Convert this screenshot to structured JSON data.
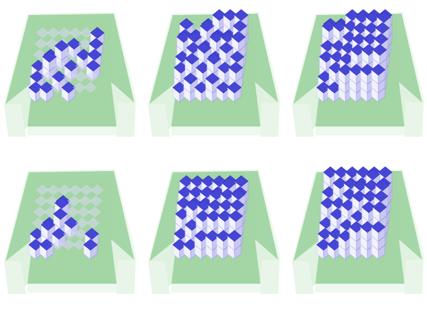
{
  "colors": {
    "background": "#ffffff",
    "tray_base": "#a5d6a7",
    "tray_wall_inner": "#dff2df",
    "tray_wall_outer": "#eef8ee",
    "cube_top": "#4646d6",
    "cube_top_dark": "#2f2fb8",
    "cube_side_light": "#f2f2ff",
    "cube_side_mid": "#c8c8f2",
    "cube_side_dark": "#9a9ad6",
    "ghost_cube": "#d9d9f2"
  },
  "panels": [
    {
      "cols": 6,
      "rows": 6,
      "heights": [
        [
          0,
          0,
          0,
          0,
          0,
          1
        ],
        [
          0,
          0,
          0,
          1,
          0,
          1
        ],
        [
          0,
          1,
          2,
          0,
          1,
          1
        ],
        [
          1,
          2,
          0,
          1,
          0,
          1
        ],
        [
          1,
          0,
          1,
          0,
          0,
          0
        ],
        [
          1,
          1,
          0,
          1,
          0,
          0
        ]
      ]
    },
    {
      "cols": 6,
      "rows": 6,
      "heights": [
        [
          2,
          0,
          2,
          3,
          3,
          3
        ],
        [
          2,
          2,
          3,
          2,
          2,
          3
        ],
        [
          3,
          3,
          2,
          3,
          3,
          3
        ],
        [
          2,
          3,
          3,
          2,
          3,
          2
        ],
        [
          2,
          3,
          2,
          3,
          2,
          2
        ],
        [
          1,
          2,
          1,
          2,
          1,
          1
        ]
      ]
    },
    {
      "cols": 6,
      "rows": 6,
      "heights": [
        [
          2,
          2,
          3,
          3,
          3,
          3
        ],
        [
          3,
          3,
          3,
          4,
          4,
          4
        ],
        [
          2,
          2,
          3,
          4,
          4,
          4
        ],
        [
          2,
          2,
          3,
          4,
          4,
          4
        ],
        [
          1,
          2,
          3,
          4,
          4,
          4
        ],
        [
          1,
          1,
          3,
          3,
          3,
          3
        ]
      ]
    },
    {
      "cols": 6,
      "rows": 6,
      "heights": [
        [
          0,
          0,
          0,
          0,
          0,
          0
        ],
        [
          0,
          0,
          1,
          0,
          0,
          0
        ],
        [
          0,
          0,
          2,
          0,
          0,
          0
        ],
        [
          0,
          1,
          2,
          1,
          0,
          0
        ],
        [
          1,
          2,
          1,
          0,
          0,
          1
        ],
        [
          1,
          1,
          0,
          0,
          0,
          1
        ]
      ]
    },
    {
      "cols": 6,
      "rows": 6,
      "heights": [
        [
          2,
          2,
          2,
          2,
          2,
          2
        ],
        [
          2,
          2,
          2,
          2,
          3,
          2
        ],
        [
          2,
          2,
          2,
          3,
          3,
          3
        ],
        [
          2,
          3,
          3,
          3,
          3,
          3
        ],
        [
          1,
          2,
          3,
          3,
          3,
          3
        ],
        [
          1,
          1,
          2,
          2,
          2,
          2
        ]
      ]
    },
    {
      "cols": 6,
      "rows": 6,
      "heights": [
        [
          3,
          3,
          3,
          3,
          3,
          3
        ],
        [
          2,
          3,
          3,
          3,
          4,
          3
        ],
        [
          2,
          2,
          3,
          4,
          4,
          4
        ],
        [
          1,
          2,
          3,
          4,
          4,
          4
        ],
        [
          1,
          1,
          2,
          3,
          4,
          4
        ],
        [
          1,
          1,
          2,
          3,
          3,
          3
        ]
      ]
    }
  ]
}
